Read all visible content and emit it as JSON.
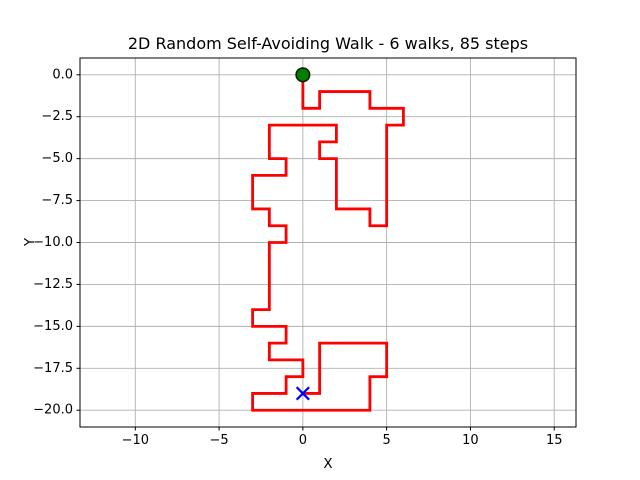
{
  "chart_data": {
    "type": "line",
    "title": "2D Random Self-Avoiding Walk - 6 walks, 85 steps",
    "xlabel": "X",
    "ylabel": "Y",
    "walks": 6,
    "steps": 85,
    "xlim": [
      -13.3,
      16.3
    ],
    "ylim": [
      -21.0,
      1.0
    ],
    "x_ticks": [
      -10,
      -5,
      0,
      5,
      10,
      15
    ],
    "y_ticks": [
      0,
      -2.5,
      -5,
      -7.5,
      -10,
      -12.5,
      -15,
      -17.5,
      -20
    ],
    "grid": true,
    "legend_position": "none",
    "colors": {
      "walk": "#ff0000",
      "grid": "#b0b0b0",
      "axes": "#000000",
      "start_fill": "#008000",
      "start_edge": "#0a1f0a",
      "end": "#0000ff",
      "background": "#ffffff"
    },
    "series": [
      {
        "name": "walk",
        "linewidth": 2.8,
        "points": [
          [
            0,
            0
          ],
          [
            0,
            -2
          ],
          [
            1,
            -2
          ],
          [
            1,
            -1
          ],
          [
            4,
            -1
          ],
          [
            4,
            -2
          ],
          [
            6,
            -2
          ],
          [
            6,
            -3
          ],
          [
            5,
            -3
          ],
          [
            5,
            -9
          ],
          [
            4,
            -9
          ],
          [
            4,
            -8
          ],
          [
            2,
            -8
          ],
          [
            2,
            -5
          ],
          [
            1,
            -5
          ],
          [
            1,
            -4
          ],
          [
            2,
            -4
          ],
          [
            2,
            -3
          ],
          [
            -2,
            -3
          ],
          [
            -2,
            -5
          ],
          [
            -1,
            -5
          ],
          [
            -1,
            -6
          ],
          [
            -3,
            -6
          ],
          [
            -3,
            -8
          ],
          [
            -2,
            -8
          ],
          [
            -2,
            -9
          ],
          [
            -1,
            -9
          ],
          [
            -1,
            -10
          ],
          [
            -2,
            -10
          ],
          [
            -2,
            -14
          ],
          [
            -3,
            -14
          ],
          [
            -3,
            -15
          ],
          [
            -1,
            -15
          ],
          [
            -1,
            -16
          ],
          [
            -2,
            -16
          ],
          [
            -2,
            -17
          ],
          [
            0,
            -17
          ],
          [
            0,
            -18
          ],
          [
            -1,
            -18
          ],
          [
            -1,
            -19
          ],
          [
            -3,
            -19
          ],
          [
            -3,
            -20
          ],
          [
            4,
            -20
          ],
          [
            4,
            -18
          ],
          [
            5,
            -18
          ],
          [
            5,
            -16
          ],
          [
            1,
            -16
          ],
          [
            1,
            -19
          ],
          [
            0,
            -19
          ]
        ]
      }
    ],
    "start_marker": {
      "x": 0,
      "y": 0,
      "shape": "circle",
      "size": 13.5
    },
    "end_marker": {
      "x": 0,
      "y": -19,
      "shape": "x",
      "size": 12.5
    }
  }
}
